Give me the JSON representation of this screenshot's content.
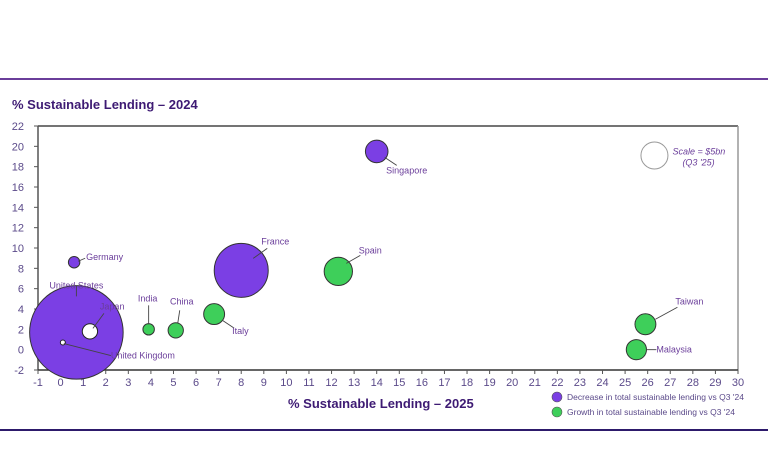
{
  "chart_data": {
    "type": "scatter",
    "subtype": "bubble",
    "title": "% Sustainable Lending – 2024",
    "xlabel": "% Sustainable Lending – 2025",
    "ylabel": "% Sustainable Lending – 2024",
    "xlim": [
      -1,
      30
    ],
    "ylim": [
      -2,
      22
    ],
    "x_ticks": [
      -1,
      0,
      1,
      2,
      3,
      4,
      5,
      6,
      7,
      8,
      9,
      10,
      11,
      12,
      13,
      14,
      15,
      16,
      17,
      18,
      19,
      20,
      21,
      22,
      23,
      24,
      25,
      26,
      27,
      28,
      29,
      30
    ],
    "y_ticks": [
      -2,
      0,
      2,
      4,
      6,
      8,
      10,
      12,
      14,
      16,
      18,
      20,
      22
    ],
    "grid": false,
    "colors": {
      "decrease": "#7b3fe4",
      "growth": "#3ecf5a",
      "hollow": "#ffffff"
    },
    "series": [
      {
        "name": "United States",
        "x": 0.7,
        "y": 1.7,
        "size_bn": 60,
        "category": "decrease"
      },
      {
        "name": "France",
        "x": 8.0,
        "y": 7.8,
        "size_bn": 20,
        "category": "decrease"
      },
      {
        "name": "Singapore",
        "x": 14.0,
        "y": 19.5,
        "size_bn": 3.5,
        "category": "decrease"
      },
      {
        "name": "Germany",
        "x": 0.6,
        "y": 8.6,
        "size_bn": 0.9,
        "category": "decrease"
      },
      {
        "name": "Japan",
        "x": 1.3,
        "y": 1.8,
        "size_bn": 1.6,
        "category": "hollow"
      },
      {
        "name": "United Kingdom",
        "x": 0.1,
        "y": 0.7,
        "size_bn": 0.1,
        "category": "hollow"
      },
      {
        "name": "Spain",
        "x": 12.3,
        "y": 7.7,
        "size_bn": 5.5,
        "category": "growth"
      },
      {
        "name": "Italy",
        "x": 6.8,
        "y": 3.5,
        "size_bn": 3.0,
        "category": "growth"
      },
      {
        "name": "China",
        "x": 5.1,
        "y": 1.9,
        "size_bn": 1.6,
        "category": "growth"
      },
      {
        "name": "India",
        "x": 3.9,
        "y": 2.0,
        "size_bn": 0.9,
        "category": "growth"
      },
      {
        "name": "Taiwan",
        "x": 25.9,
        "y": 2.5,
        "size_bn": 3.0,
        "category": "growth"
      },
      {
        "name": "Malaysia",
        "x": 25.5,
        "y": 0.0,
        "size_bn": 2.8,
        "category": "growth"
      }
    ],
    "scale_reference": {
      "label_line1": "Scale = $5bn",
      "label_line2": "(Q3 '25)",
      "size_bn": 5
    },
    "legend": [
      {
        "label": "Decrease in total sustainable lending vs Q3 '24",
        "category": "decrease"
      },
      {
        "label": "Growth in total sustainable lending vs Q3 '24",
        "category": "growth"
      }
    ],
    "legend_position": "bottom-right"
  }
}
